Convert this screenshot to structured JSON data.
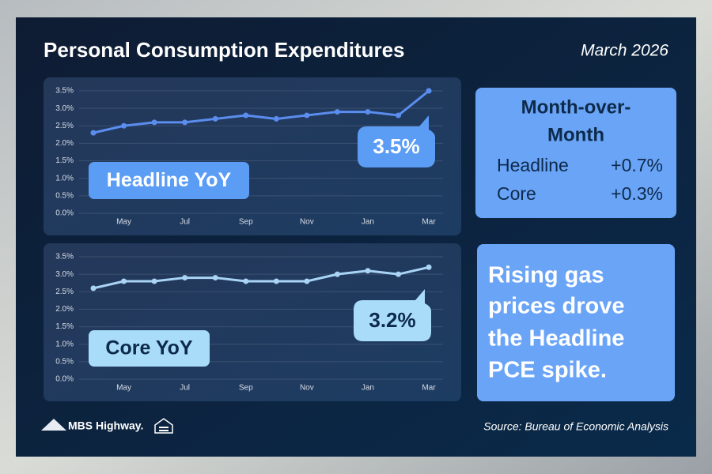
{
  "header": {
    "title": "Personal Consumption Expenditures",
    "date": "March 2026"
  },
  "chart_data": [
    {
      "type": "line",
      "label": "Headline YoY",
      "annotation": "3.5%",
      "categories": [
        null,
        "May",
        null,
        "Jul",
        null,
        "Sep",
        null,
        "Nov",
        null,
        "Jan",
        null,
        "Mar"
      ],
      "series": [
        {
          "name": "Headline YoY",
          "color": "#5b8def",
          "values": [
            2.3,
            2.5,
            2.6,
            2.6,
            2.7,
            2.8,
            2.7,
            2.8,
            2.9,
            2.9,
            2.8,
            3.5
          ]
        }
      ],
      "ylim": [
        0,
        3.5
      ],
      "yticks": [
        {
          "value": 0,
          "label": "0.0%"
        },
        {
          "value": 0.5,
          "label": "0.5%"
        },
        {
          "value": 1,
          "label": "1.0%"
        },
        {
          "value": 1.5,
          "label": "1.5%"
        },
        {
          "value": 2,
          "label": "2.0%"
        },
        {
          "value": 2.5,
          "label": "2.5%"
        },
        {
          "value": 3,
          "label": "3.0%"
        },
        {
          "value": 3.5,
          "label": "3.5%"
        }
      ],
      "grid": true
    },
    {
      "type": "line",
      "label": "Core YoY",
      "annotation": "3.2%",
      "categories": [
        null,
        "May",
        null,
        "Jul",
        null,
        "Sep",
        null,
        "Nov",
        null,
        "Jan",
        null,
        "Mar"
      ],
      "series": [
        {
          "name": "Core YoY",
          "color": "#a9d4f5",
          "values": [
            2.6,
            2.8,
            2.8,
            2.9,
            2.9,
            2.8,
            2.8,
            2.8,
            3.0,
            3.1,
            3.0,
            3.2
          ]
        }
      ],
      "ylim": [
        0,
        3.5
      ],
      "yticks": [
        {
          "value": 0,
          "label": "0.0%"
        },
        {
          "value": 0.5,
          "label": "0.5%"
        },
        {
          "value": 1,
          "label": "1.0%"
        },
        {
          "value": 1.5,
          "label": "1.5%"
        },
        {
          "value": 2,
          "label": "2.0%"
        },
        {
          "value": 2.5,
          "label": "2.5%"
        },
        {
          "value": 3,
          "label": "3.0%"
        },
        {
          "value": 3.5,
          "label": "3.5%"
        }
      ],
      "grid": true
    }
  ],
  "mom": {
    "title": [
      "Month-over-",
      "Month"
    ],
    "rows": [
      [
        "Headline",
        "+0.7%"
      ],
      [
        "Core",
        "+0.3%"
      ]
    ]
  },
  "note": [
    "Rising gas",
    "prices drove",
    "the Headline",
    "PCE spike."
  ],
  "footer": {
    "logo": "MBS Highway.",
    "source": "Source: Bureau of Economic Analysis"
  }
}
